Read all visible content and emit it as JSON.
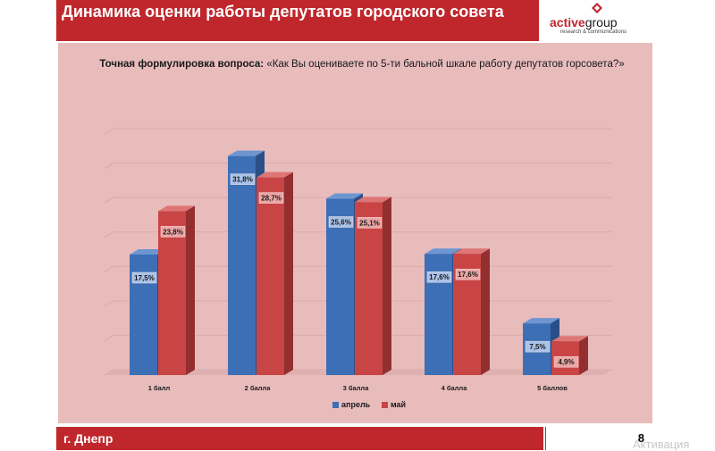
{
  "header": {
    "title": "Динамика оценки работы депутатов городского совета"
  },
  "logo": {
    "brand_main": "active",
    "brand_rest": "group",
    "tagline": "research & communications"
  },
  "question": {
    "prefix": "Точная формулировка вопроса:",
    "text": "«Как Вы оцениваете по 5-ти бальной шкале работу депутатов горсовета?»"
  },
  "footer": {
    "city": "г. Днепр",
    "page": "8"
  },
  "watermark": "Активация",
  "colors": {
    "april": "#3d6fb6",
    "may": "#c94545",
    "header": "#c0272d",
    "chart_bg": "#e9bcbc"
  },
  "chart_data": {
    "type": "bar",
    "categories": [
      "1 балл",
      "2 балла",
      "3 балла",
      "4 балла",
      "5 баллов"
    ],
    "series": [
      {
        "name": "апрель",
        "values": [
          17.5,
          31.8,
          25.6,
          17.6,
          7.5
        ],
        "labels": [
          "17,5%",
          "31,8%",
          "25,6%",
          "17,6%",
          "7,5%"
        ]
      },
      {
        "name": "май",
        "values": [
          23.8,
          28.7,
          25.1,
          17.6,
          4.9
        ],
        "labels": [
          "23,8%",
          "28,7%",
          "25,1%",
          "17,6%",
          "4,9%"
        ]
      }
    ],
    "ylim": [
      0,
      35
    ],
    "legend": "bottom"
  }
}
